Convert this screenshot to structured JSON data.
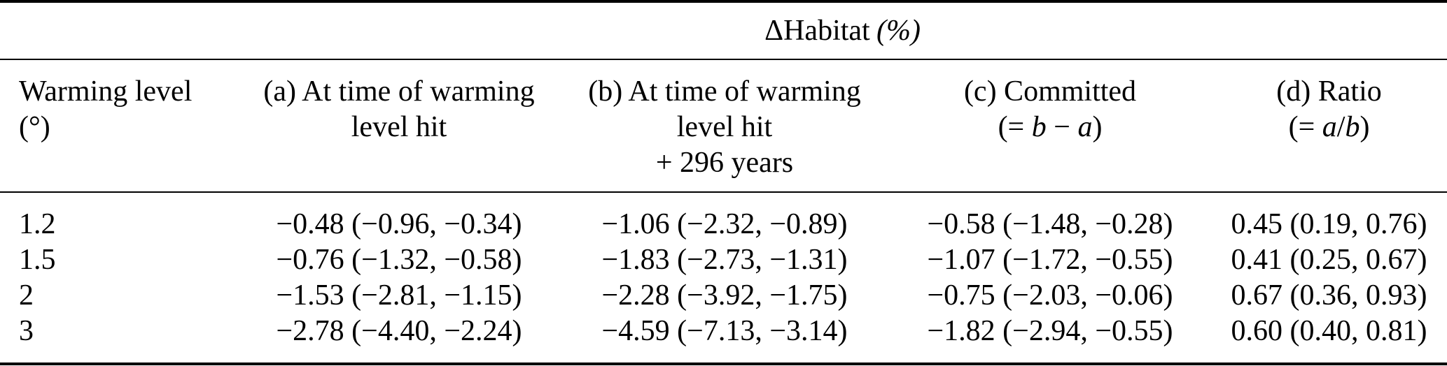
{
  "table": {
    "title": "ΔHabitat",
    "title_unit": "(%)",
    "header": {
      "warming": [
        "Warming level",
        "(°)"
      ],
      "a": [
        "(a) At time of warming",
        "level hit"
      ],
      "b": [
        "(b) At time of warming",
        "level hit",
        "+ 296 years"
      ],
      "c": {
        "title": "(c) Committed",
        "formula": [
          "(= ",
          "b",
          " − ",
          "a",
          ")"
        ]
      },
      "d": {
        "title": "(d) Ratio",
        "formula": [
          "(= ",
          "a",
          "/",
          "b",
          ")"
        ]
      }
    },
    "rows": [
      {
        "warming_level": "1.2",
        "a": "−0.48 (−0.96, −0.34)",
        "b": "−1.06 (−2.32, −0.89)",
        "c": "−0.58 (−1.48, −0.28)",
        "d": "0.45 (0.19, 0.76)"
      },
      {
        "warming_level": "1.5",
        "a": "−0.76 (−1.32, −0.58)",
        "b": "−1.83 (−2.73, −1.31)",
        "c": "−1.07 (−1.72, −0.55)",
        "d": "0.41 (0.25, 0.67)"
      },
      {
        "warming_level": "2",
        "a": "−1.53 (−2.81, −1.15)",
        "b": "−2.28 (−3.92, −1.75)",
        "c": "−0.75 (−2.03, −0.06)",
        "d": "0.67 (0.36, 0.93)"
      },
      {
        "warming_level": "3",
        "a": "−2.78 (−4.40, −2.24)",
        "b": "−4.59 (−7.13, −3.14)",
        "c": "−1.82 (−2.94, −0.55)",
        "d": "0.60 (0.40, 0.81)"
      }
    ]
  },
  "colors": {
    "text": "#000000",
    "background": "#ffffff",
    "rule": "#000000"
  }
}
